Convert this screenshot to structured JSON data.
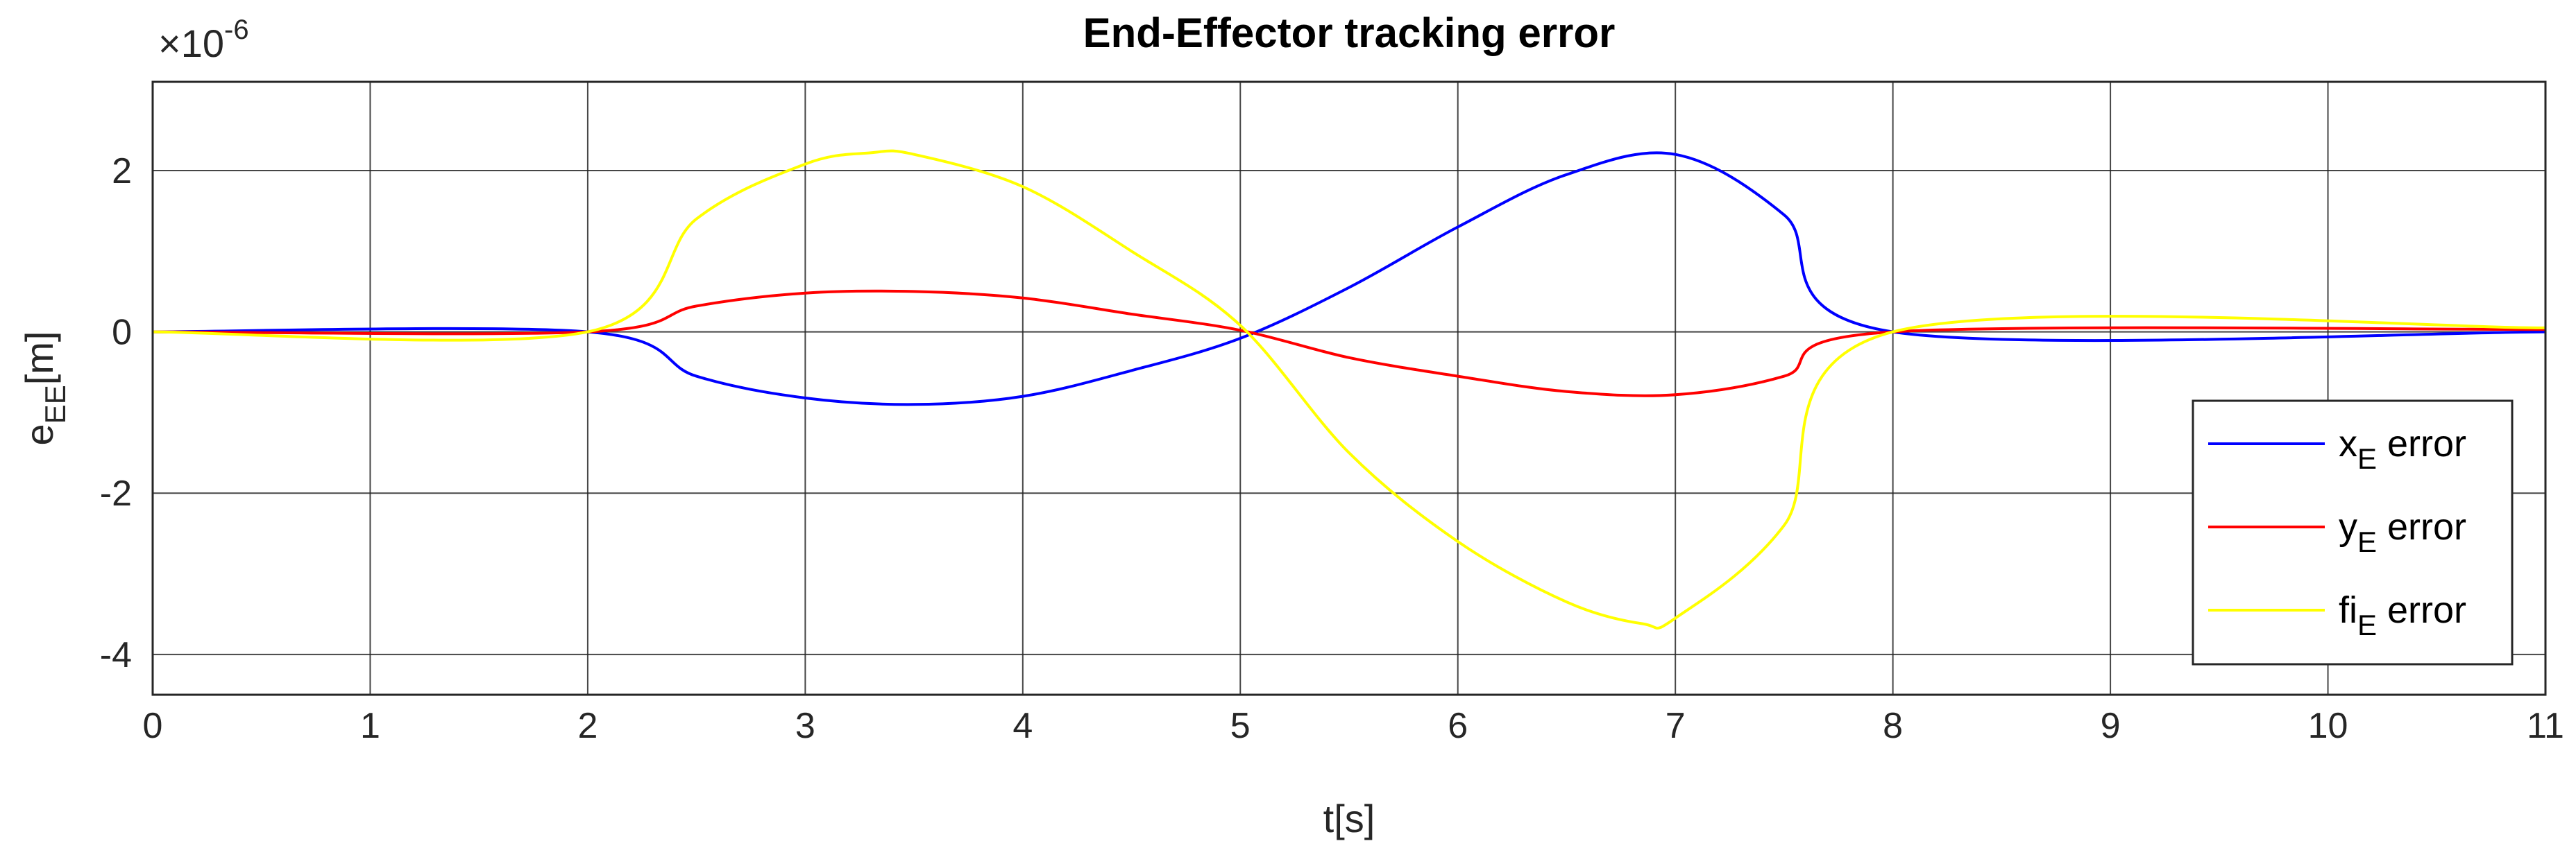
{
  "chart_data": {
    "type": "line",
    "title": "End-Effector tracking error",
    "xlabel": "t[s]",
    "ylabel": "e",
    "ylabel_sub": "EE",
    "ylabel_unit": "[m]",
    "exponent_label": "×10",
    "exponent_power": "-6",
    "xlim": [
      0,
      11
    ],
    "ylim": [
      -4.5,
      3.1
    ],
    "x_ticks": [
      0,
      1,
      2,
      3,
      4,
      5,
      6,
      7,
      8,
      9,
      10,
      11
    ],
    "y_ticks": [
      -4,
      -2,
      0,
      2
    ],
    "grid": true,
    "legend_position": "lower-right",
    "series": [
      {
        "name": "x",
        "name_sub": "E",
        "name_suffix": " error",
        "color": "#0000ff",
        "points": [
          [
            0,
            0
          ],
          [
            2,
            0
          ],
          [
            2.5,
            -0.55
          ],
          [
            3,
            -0.82
          ],
          [
            3.5,
            -0.9
          ],
          [
            4,
            -0.8
          ],
          [
            4.5,
            -0.48
          ],
          [
            5,
            -0.08
          ],
          [
            5.5,
            0.55
          ],
          [
            6,
            1.3
          ],
          [
            6.5,
            1.95
          ],
          [
            7,
            2.2
          ],
          [
            7.5,
            1.45
          ],
          [
            8,
            0
          ],
          [
            11,
            0
          ]
        ]
      },
      {
        "name": "y",
        "name_sub": "E",
        "name_suffix": " error",
        "color": "#ff0000",
        "points": [
          [
            0,
            0
          ],
          [
            2,
            0
          ],
          [
            2.5,
            0.32
          ],
          [
            3,
            0.48
          ],
          [
            3.5,
            0.5
          ],
          [
            4,
            0.42
          ],
          [
            4.5,
            0.22
          ],
          [
            5,
            0.02
          ],
          [
            5.5,
            -0.32
          ],
          [
            6,
            -0.55
          ],
          [
            6.5,
            -0.74
          ],
          [
            7,
            -0.78
          ],
          [
            7.5,
            -0.55
          ],
          [
            8,
            0
          ],
          [
            11,
            0.03
          ]
        ]
      },
      {
        "name": "fi",
        "name_sub": "E",
        "name_suffix": " error",
        "color": "#ffff00",
        "points": [
          [
            0,
            0
          ],
          [
            2,
            0
          ],
          [
            2.5,
            1.4
          ],
          [
            3,
            2.08
          ],
          [
            3.3,
            2.22
          ],
          [
            3.5,
            2.2
          ],
          [
            4,
            1.8
          ],
          [
            4.5,
            1.0
          ],
          [
            5,
            0.08
          ],
          [
            5.5,
            -1.5
          ],
          [
            6,
            -2.6
          ],
          [
            6.5,
            -3.35
          ],
          [
            6.85,
            -3.62
          ],
          [
            7,
            -3.55
          ],
          [
            7.5,
            -2.4
          ],
          [
            8,
            0
          ],
          [
            11,
            0.05
          ]
        ]
      }
    ]
  }
}
